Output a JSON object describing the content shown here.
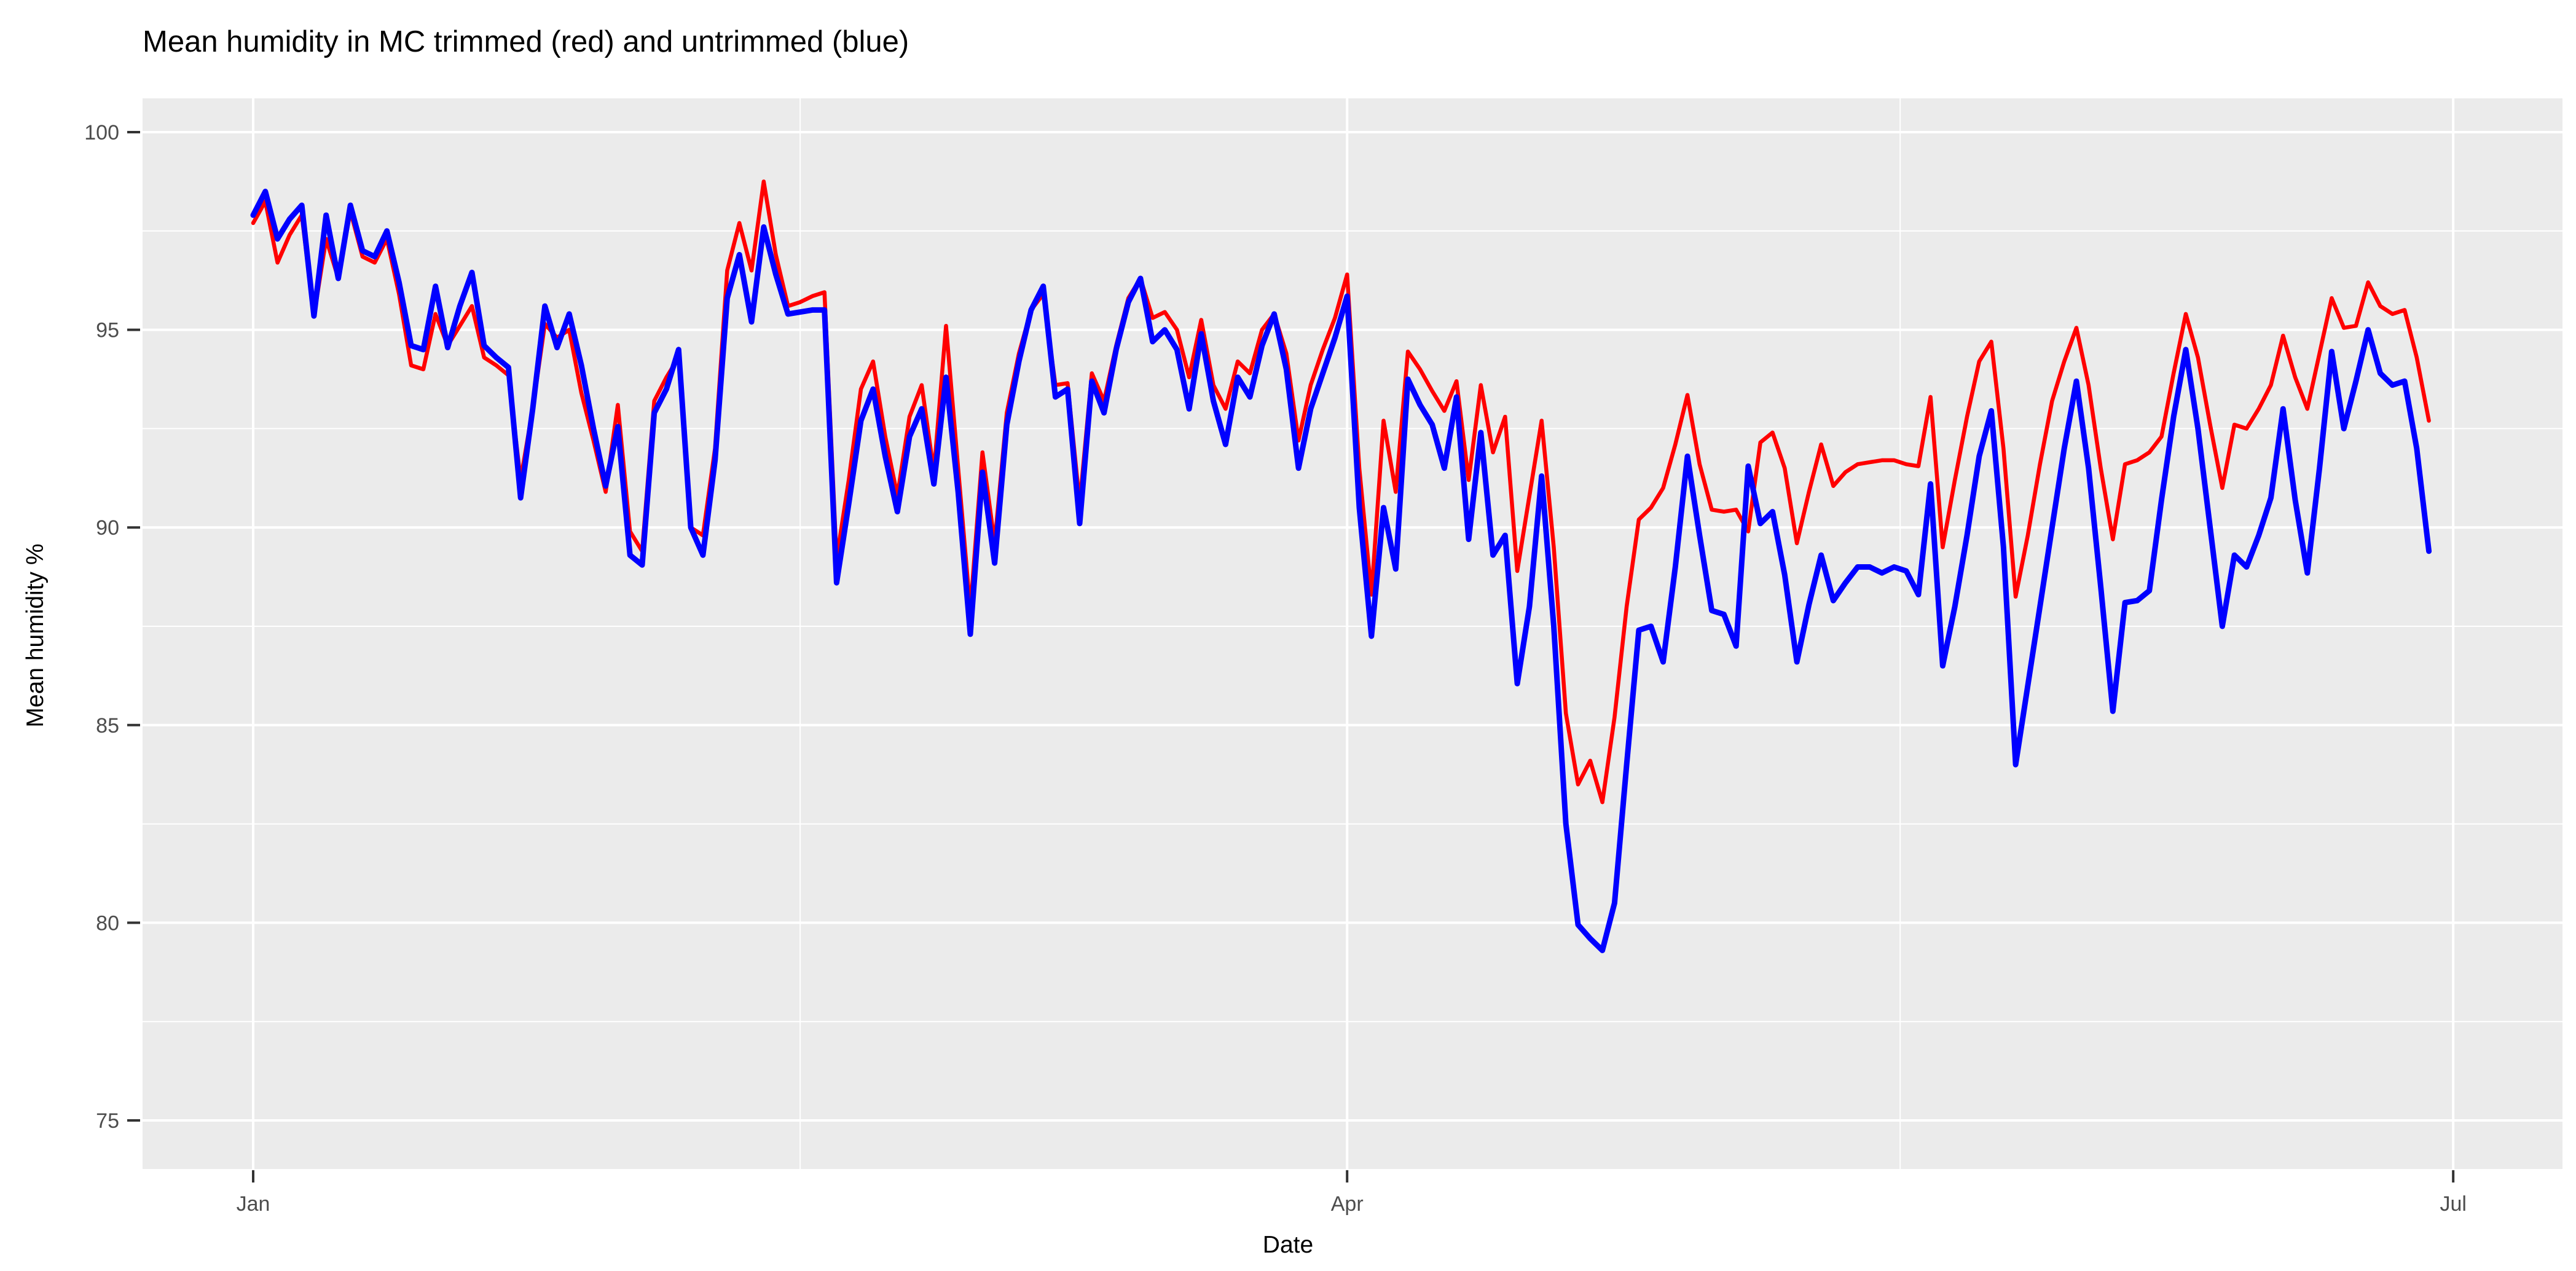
{
  "title": "Mean humidity in MC trimmed (red) and untrimmed (blue)",
  "chart_data": {
    "type": "line",
    "title": "Mean humidity in MC trimmed (red) and untrimmed (blue)",
    "xlabel": "Date",
    "ylabel": "Mean humidity %",
    "x_tick_labels": [
      "Jan",
      "Apr",
      "Jul"
    ],
    "x_tick_days": [
      0,
      90,
      181
    ],
    "x_minor_days": [
      45,
      135.5
    ],
    "y_ticks": [
      75,
      80,
      85,
      90,
      95,
      100
    ],
    "y_minor_ticks": [
      77.5,
      82.5,
      87.5,
      92.5,
      97.5
    ],
    "ylim": [
      73.8,
      100.85
    ],
    "x_start_label": "Jan 1",
    "x_step": "1 day",
    "legend_position": "none",
    "grid": true,
    "panel_bg": "#EBEBEB",
    "grid_color": "#FFFFFF",
    "tick_color": "#333333",
    "axis_text_color": "#4D4D4D",
    "title_color": "#000000",
    "series": [
      {
        "name": "trimmed",
        "color": "#FF0000",
        "width": 6.5,
        "values": [
          97.7,
          98.25,
          96.7,
          97.4,
          97.9,
          95.35,
          97.3,
          96.3,
          98.0,
          96.85,
          96.7,
          97.3,
          95.9,
          94.1,
          94.0,
          95.4,
          94.6,
          95.1,
          95.6,
          94.3,
          94.1,
          93.85,
          91.2,
          93.0,
          95.15,
          94.8,
          95.0,
          93.4,
          92.2,
          90.9,
          93.1,
          89.9,
          89.4,
          93.2,
          93.8,
          94.3,
          90.0,
          89.8,
          92.0,
          96.5,
          97.7,
          96.5,
          98.75,
          96.9,
          95.6,
          95.7,
          95.85,
          95.95,
          89.2,
          91.2,
          93.5,
          94.2,
          92.3,
          90.8,
          92.8,
          93.6,
          91.4,
          95.1,
          91.5,
          87.9,
          91.9,
          89.6,
          92.9,
          94.4,
          95.5,
          95.9,
          93.6,
          93.65,
          90.6,
          93.9,
          93.2,
          94.6,
          95.8,
          96.3,
          95.3,
          95.45,
          95.0,
          93.8,
          95.25,
          93.6,
          93.0,
          94.2,
          93.9,
          95.0,
          95.4,
          94.4,
          92.2,
          93.6,
          94.5,
          95.3,
          96.4,
          91.5,
          88.3,
          92.7,
          90.9,
          94.45,
          94.0,
          93.45,
          92.95,
          93.7,
          91.2,
          93.6,
          91.9,
          92.8,
          88.9,
          90.8,
          92.7,
          89.5,
          85.3,
          83.5,
          84.1,
          83.05,
          85.2,
          88.0,
          90.2,
          90.5,
          91.0,
          92.1,
          93.35,
          91.6,
          90.45,
          90.4,
          90.45,
          89.9,
          92.15,
          92.4,
          91.5,
          89.6,
          90.9,
          92.1,
          91.05,
          91.4,
          91.6,
          91.65,
          91.7,
          91.7,
          91.6,
          91.55,
          93.3,
          89.5,
          91.2,
          92.8,
          94.2,
          94.7,
          92.0,
          88.25,
          89.8,
          91.6,
          93.2,
          94.2,
          95.05,
          93.6,
          91.5,
          89.7,
          91.6,
          91.7,
          91.9,
          92.3,
          93.9,
          95.4,
          94.3,
          92.6,
          91.0,
          92.6,
          92.5,
          93.0,
          93.6,
          94.85,
          93.8,
          93.0,
          94.4,
          95.8,
          95.05,
          95.1,
          96.2,
          95.6,
          95.4,
          95.5,
          94.3,
          92.7
        ]
      },
      {
        "name": "untrimmed",
        "color": "#0000FF",
        "width": 9,
        "values": [
          97.9,
          98.5,
          97.3,
          97.8,
          98.15,
          95.35,
          97.9,
          96.3,
          98.15,
          97.0,
          96.85,
          97.5,
          96.2,
          94.6,
          94.5,
          96.1,
          94.55,
          95.6,
          96.45,
          94.6,
          94.3,
          94.05,
          90.75,
          93.0,
          95.6,
          94.55,
          95.4,
          94.1,
          92.5,
          91.05,
          92.55,
          89.3,
          89.05,
          92.9,
          93.5,
          94.5,
          90.0,
          89.3,
          91.7,
          95.8,
          96.9,
          95.2,
          97.6,
          96.4,
          95.4,
          95.45,
          95.5,
          95.5,
          88.6,
          90.6,
          92.7,
          93.5,
          91.8,
          90.4,
          92.3,
          93.0,
          91.1,
          93.8,
          90.9,
          87.3,
          91.4,
          89.1,
          92.6,
          94.2,
          95.5,
          96.1,
          93.3,
          93.5,
          90.1,
          93.7,
          92.9,
          94.5,
          95.7,
          96.3,
          94.7,
          95.0,
          94.5,
          93.0,
          94.9,
          93.2,
          92.1,
          93.8,
          93.3,
          94.6,
          95.4,
          94.0,
          91.5,
          93.0,
          93.9,
          94.8,
          95.85,
          90.5,
          87.25,
          90.5,
          88.95,
          93.75,
          93.1,
          92.6,
          91.5,
          93.3,
          89.7,
          92.4,
          89.3,
          89.8,
          86.05,
          88.0,
          91.3,
          87.5,
          82.5,
          79.95,
          79.6,
          79.3,
          80.5,
          84.0,
          87.4,
          87.5,
          86.6,
          89.0,
          91.8,
          89.8,
          87.9,
          87.8,
          87.0,
          91.55,
          90.1,
          90.4,
          88.8,
          86.6,
          88.05,
          89.3,
          88.15,
          88.6,
          89.0,
          89.0,
          88.85,
          89.0,
          88.9,
          88.3,
          91.1,
          86.5,
          88.0,
          89.8,
          91.8,
          92.95,
          89.5,
          84.0,
          86.0,
          88.0,
          90.0,
          92.0,
          93.7,
          91.5,
          88.5,
          85.35,
          88.1,
          88.15,
          88.4,
          90.7,
          92.8,
          94.5,
          92.5,
          90.0,
          87.5,
          89.3,
          89.0,
          89.8,
          90.75,
          93.0,
          90.7,
          88.85,
          91.5,
          94.45,
          92.5,
          93.7,
          95.0,
          93.9,
          93.6,
          93.7,
          92.0,
          89.4
        ]
      }
    ]
  }
}
